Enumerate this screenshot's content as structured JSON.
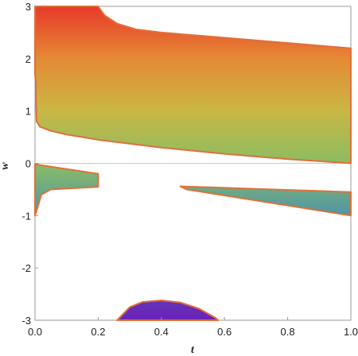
{
  "chart_data": {
    "type": "area",
    "xlabel": "t",
    "ylabel": "w",
    "xlim": [
      0,
      1
    ],
    "ylim": [
      -3,
      3
    ],
    "x_ticks": [
      0.0,
      0.2,
      0.4,
      0.6,
      0.8,
      1.0
    ],
    "x_tick_labels": [
      "0.0",
      "0.2",
      "0.4",
      "0.6",
      "0.8",
      "1.0"
    ],
    "y_ticks": [
      -3,
      -2,
      -1,
      0,
      1,
      2,
      3
    ],
    "y_tick_labels": [
      "-3",
      "-2",
      "-1",
      "0",
      "1",
      "2",
      "3"
    ],
    "zero_line": true,
    "colors": {
      "boundary": "#e0703a",
      "frame": "#999999",
      "zero_line": "#c8c8c8",
      "gradient": [
        {
          "w": 3,
          "color": "#e8392a"
        },
        {
          "w": 2,
          "color": "#e58a35"
        },
        {
          "w": 1,
          "color": "#c9b744"
        },
        {
          "w": 0,
          "color": "#8bbd62"
        },
        {
          "w": -1,
          "color": "#4f95a8"
        },
        {
          "w": -2,
          "color": "#5a55b6"
        },
        {
          "w": -3,
          "color": "#6a21b8"
        }
      ]
    },
    "regions": [
      {
        "points": [
          [
            0,
            3
          ],
          [
            0.2,
            3
          ],
          [
            0.22,
            2.83
          ],
          [
            0.26,
            2.67
          ],
          [
            0.32,
            2.56
          ],
          [
            0.4,
            2.5
          ],
          [
            0.6,
            2.4
          ],
          [
            0.8,
            2.3
          ],
          [
            1.0,
            2.2
          ],
          [
            1.0,
            0.0
          ],
          [
            0.8,
            0.08
          ],
          [
            0.6,
            0.18
          ],
          [
            0.4,
            0.3
          ],
          [
            0.2,
            0.45
          ],
          [
            0.1,
            0.55
          ],
          [
            0.05,
            0.62
          ],
          [
            0.015,
            0.7
          ],
          [
            0.005,
            0.8
          ],
          [
            0.003,
            1.2
          ],
          [
            0.003,
            1.5
          ],
          [
            0,
            1.7
          ]
        ]
      },
      {
        "points": [
          [
            0,
            -0.02
          ],
          [
            0.2,
            -0.2
          ],
          [
            0.2,
            -0.45
          ],
          [
            0.05,
            -0.5
          ],
          [
            0.02,
            -0.6
          ],
          [
            0.008,
            -0.85
          ],
          [
            0,
            -1.0
          ]
        ]
      },
      {
        "points": [
          [
            0.46,
            -0.44
          ],
          [
            1.0,
            -0.55
          ],
          [
            1.0,
            -1.0
          ],
          [
            0.48,
            -0.5
          ]
        ]
      },
      {
        "points": [
          [
            0.26,
            -3.0
          ],
          [
            0.3,
            -2.75
          ],
          [
            0.34,
            -2.65
          ],
          [
            0.4,
            -2.62
          ],
          [
            0.46,
            -2.66
          ],
          [
            0.52,
            -2.78
          ],
          [
            0.57,
            -2.95
          ],
          [
            0.58,
            -3.0
          ]
        ]
      }
    ]
  }
}
